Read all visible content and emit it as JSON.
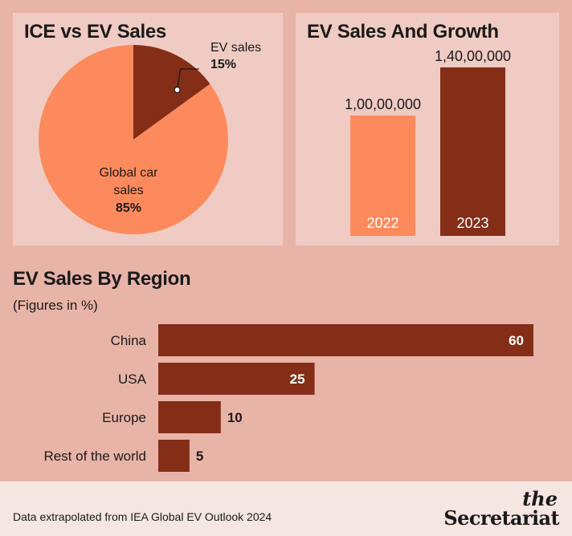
{
  "colors": {
    "background": "#e8b4a8",
    "panel": "#f0cbc3",
    "light_orange": "#fd8a5c",
    "dark_brown": "#842e18",
    "footer": "#f5e6e1"
  },
  "pie_panel": {
    "title": "ICE vs EV Sales"
  },
  "growth_panel": {
    "title": "EV Sales And Growth"
  },
  "region_panel": {
    "title": "EV Sales By Region",
    "note": "(Figures in %)"
  },
  "chart_data": [
    {
      "type": "pie",
      "title": "ICE vs EV Sales",
      "slices": [
        {
          "label": "EV sales",
          "value": 15,
          "value_label": "15%",
          "color": "#842e18"
        },
        {
          "label": "Global car sales",
          "value": 85,
          "value_label": "85%",
          "color": "#fd8a5c"
        }
      ]
    },
    {
      "type": "bar",
      "title": "EV Sales And Growth",
      "categories": [
        "2022",
        "2023"
      ],
      "values": [
        10000000,
        14000000
      ],
      "value_labels": [
        "1,00,00,000",
        "1,40,00,000"
      ],
      "colors": [
        "#fd8a5c",
        "#842e18"
      ],
      "ylim": [
        0,
        14000000
      ]
    },
    {
      "type": "bar",
      "orientation": "horizontal",
      "title": "EV Sales By Region",
      "categories": [
        "China",
        "USA",
        "Europe",
        "Rest of the world"
      ],
      "values": [
        60,
        25,
        10,
        5
      ],
      "xlim": [
        0,
        60
      ],
      "color": "#842e18"
    }
  ],
  "footer": {
    "source": "Data extrapolated from IEA Global EV Outlook 2024",
    "logo_the": "the",
    "logo_name": "Secretariat"
  }
}
